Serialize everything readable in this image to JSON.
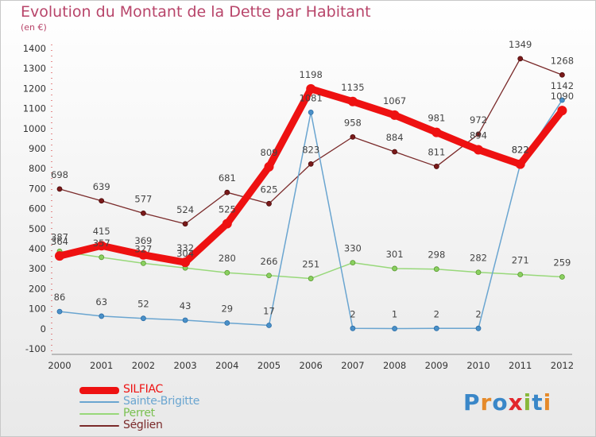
{
  "title": "Evolution du Montant de la Dette par Habitant",
  "subtitle": "(en €)",
  "logo": {
    "text": "Proxiti",
    "colors": [
      "#3a87c8",
      "#e58a2a",
      "#3a87c8",
      "#e2262c",
      "#88b83a",
      "#3a87c8",
      "#e58a2a"
    ]
  },
  "chart_data": {
    "type": "line",
    "x": [
      "2000",
      "2001",
      "2002",
      "2003",
      "2004",
      "2005",
      "2006",
      "2007",
      "2008",
      "2009",
      "2010",
      "2011",
      "2012"
    ],
    "ylim": [
      -100,
      1400
    ],
    "yticks": [
      -100,
      0,
      100,
      200,
      300,
      400,
      500,
      600,
      700,
      800,
      900,
      1000,
      1100,
      1200,
      1300,
      1400
    ],
    "grid": false,
    "legend_position": "bottom-left",
    "series": [
      {
        "name": "SILFIAC",
        "color": "#ee1111",
        "values": [
          364,
          415,
          369,
          332,
          525,
          809,
          1198,
          1135,
          1067,
          981,
          894,
          822,
          1090
        ]
      },
      {
        "name": "Sainte-Brigitte",
        "color": "#6aa5d0",
        "values": [
          86,
          63,
          52,
          43,
          29,
          17,
          1081,
          2,
          1,
          2,
          2,
          822,
          1142
        ]
      },
      {
        "name": "Perret",
        "color": "#98d87a",
        "values": [
          387,
          357,
          327,
          304,
          280,
          266,
          251,
          330,
          301,
          298,
          282,
          271,
          259
        ]
      },
      {
        "name": "Séglien",
        "color": "#7a2a2a",
        "values": [
          698,
          639,
          577,
          524,
          681,
          625,
          823,
          958,
          884,
          811,
          972,
          1349,
          1268
        ]
      }
    ]
  }
}
